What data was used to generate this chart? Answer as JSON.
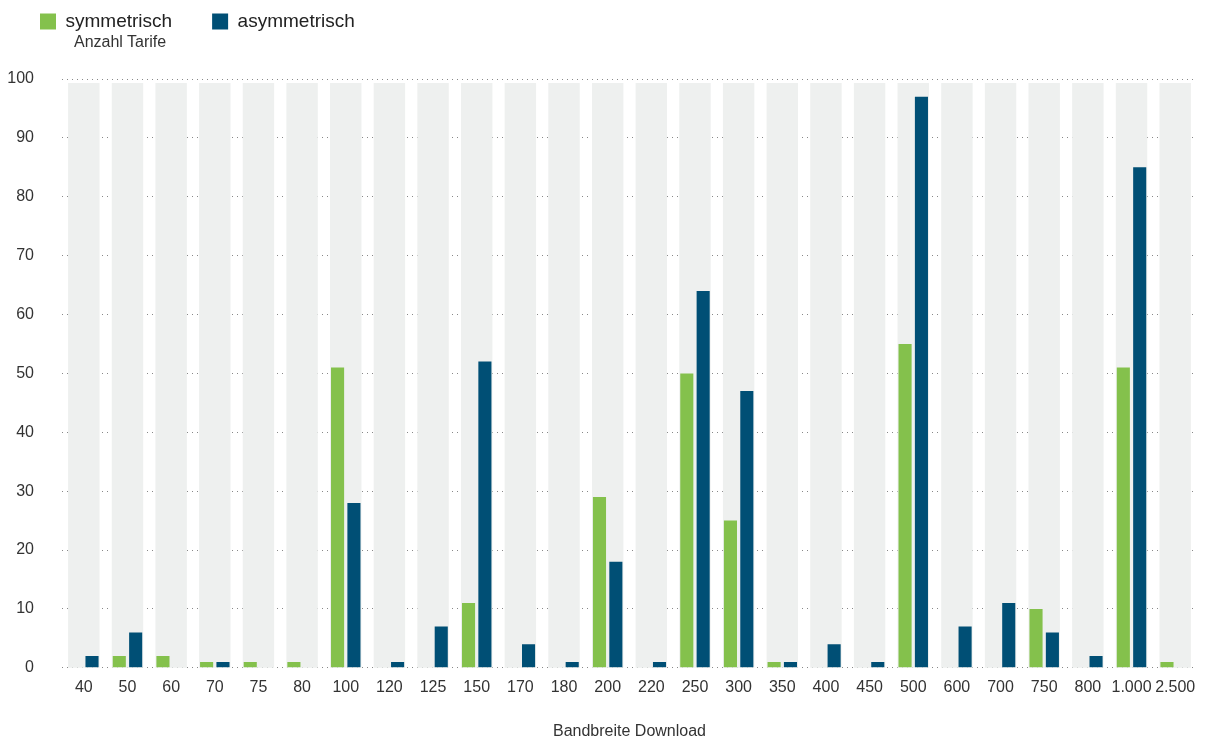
{
  "chart_data": {
    "type": "bar",
    "xlabel": "Bandbreite Download",
    "ylabel": "Anzahl Tarife",
    "categories": [
      "40",
      "50",
      "60",
      "70",
      "75",
      "80",
      "100",
      "120",
      "125",
      "150",
      "170",
      "180",
      "200",
      "220",
      "250",
      "300",
      "350",
      "400",
      "450",
      "500",
      "600",
      "700",
      "750",
      "800",
      "1.000",
      "2.500"
    ],
    "series": [
      {
        "name": "symmetrisch",
        "color": "#84c14c",
        "values": [
          0,
          2,
          2,
          1,
          1,
          1,
          51,
          0,
          0,
          11,
          0,
          0,
          29,
          0,
          50,
          25,
          1,
          0,
          0,
          55,
          0,
          0,
          10,
          0,
          51,
          1
        ]
      },
      {
        "name": "asymmetrisch",
        "color": "#004f75",
        "values": [
          2,
          6,
          0,
          1,
          0,
          0,
          28,
          1,
          7,
          52,
          4,
          1,
          18,
          1,
          64,
          47,
          1,
          4,
          1,
          97,
          7,
          11,
          6,
          2,
          85,
          0
        ]
      }
    ],
    "bands": [
      {
        "axis": "x",
        "from": "40",
        "to": "40",
        "color": "#eef0ef"
      },
      {
        "axis": "x",
        "from": "50",
        "to": "50",
        "color": "#eef0ef"
      },
      {
        "axis": "x",
        "from": "60",
        "to": "60",
        "color": "#eef0ef"
      },
      {
        "axis": "x",
        "from": "70",
        "to": "70",
        "color": "#eef0ef"
      },
      {
        "axis": "x",
        "from": "75",
        "to": "75",
        "color": "#eef0ef"
      },
      {
        "axis": "x",
        "from": "80",
        "to": "80",
        "color": "#eef0ef"
      },
      {
        "axis": "x",
        "from": "100",
        "to": "100",
        "color": "#eef0ef"
      },
      {
        "axis": "x",
        "from": "120",
        "to": "120",
        "color": "#eef0ef"
      },
      {
        "axis": "x",
        "from": "125",
        "to": "125",
        "color": "#eef0ef"
      },
      {
        "axis": "x",
        "from": "150",
        "to": "150",
        "color": "#eef0ef"
      },
      {
        "axis": "x",
        "from": "170",
        "to": "170",
        "color": "#eef0ef"
      },
      {
        "axis": "x",
        "from": "180",
        "to": "180",
        "color": "#eef0ef"
      },
      {
        "axis": "x",
        "from": "200",
        "to": "200",
        "color": "#eef0ef"
      },
      {
        "axis": "x",
        "from": "220",
        "to": "220",
        "color": "#eef0ef"
      },
      {
        "axis": "x",
        "from": "250",
        "to": "250",
        "color": "#eef0ef"
      },
      {
        "axis": "x",
        "from": "300",
        "to": "300",
        "color": "#eef0ef"
      },
      {
        "axis": "x",
        "from": "350",
        "to": "350",
        "color": "#eef0ef"
      },
      {
        "axis": "x",
        "from": "400",
        "to": "400",
        "color": "#eef0ef"
      },
      {
        "axis": "x",
        "from": "450",
        "to": "450",
        "color": "#eef0ef"
      },
      {
        "axis": "x",
        "from": "500",
        "to": "500",
        "color": "#eef0ef"
      },
      {
        "axis": "x",
        "from": "600",
        "to": "600",
        "color": "#eef0ef"
      },
      {
        "axis": "x",
        "from": "700",
        "to": "700",
        "color": "#eef0ef"
      },
      {
        "axis": "x",
        "from": "750",
        "to": "750",
        "color": "#eef0ef"
      },
      {
        "axis": "x",
        "from": "800",
        "to": "800",
        "color": "#eef0ef"
      },
      {
        "axis": "x",
        "from": "1.000",
        "to": "1.000",
        "color": "#eef0ef"
      },
      {
        "axis": "x",
        "from": "2.500",
        "to": "2.500",
        "color": "#eef0ef"
      }
    ],
    "ylim": [
      0,
      100
    ],
    "yticks": [
      0,
      10,
      20,
      30,
      40,
      50,
      60,
      70,
      80,
      90,
      100
    ],
    "grid": "y",
    "legend": "top left"
  }
}
